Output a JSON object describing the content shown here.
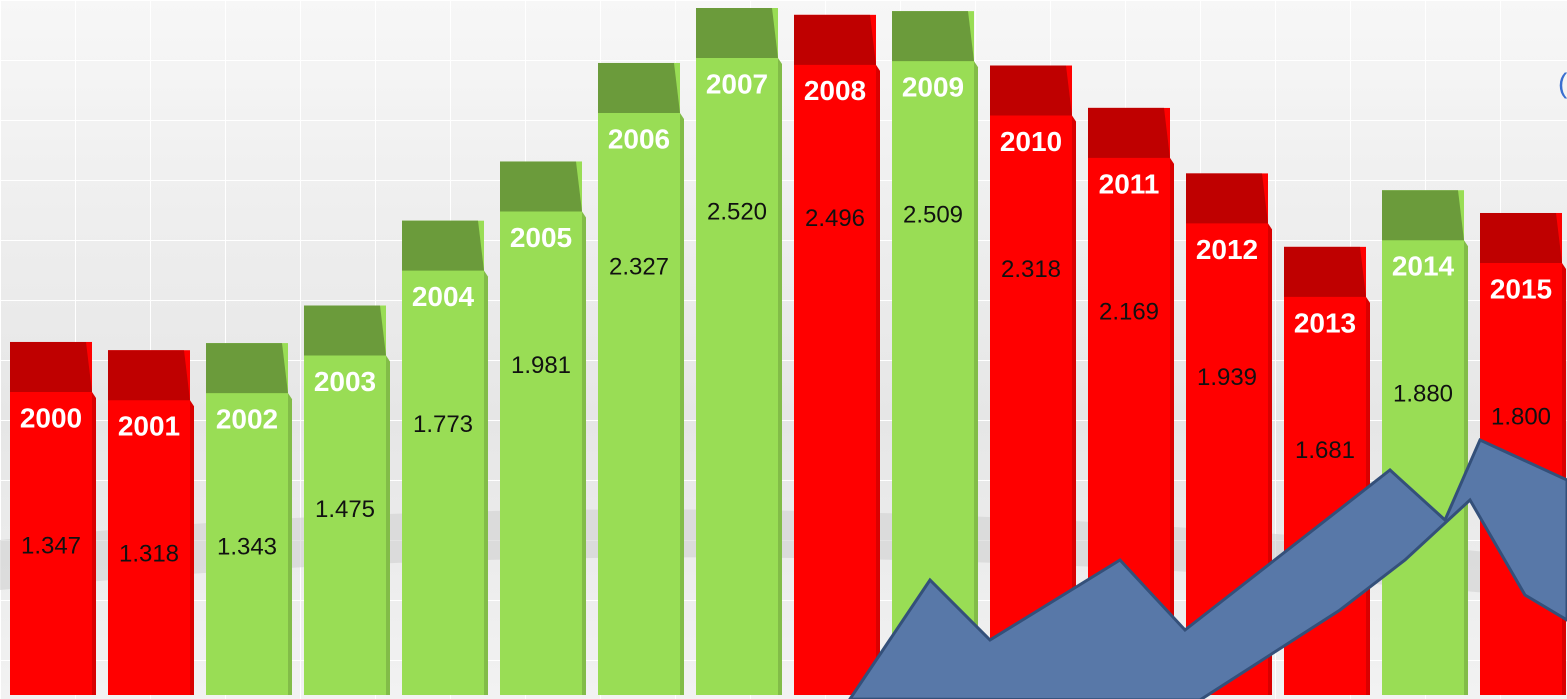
{
  "chart_data": {
    "type": "bar3d",
    "corner_text": "(",
    "categories": [
      "2000",
      "2001",
      "2002",
      "2003",
      "2004",
      "2005",
      "2006",
      "2007",
      "2008",
      "2009",
      "2010",
      "2011",
      "2012",
      "2013",
      "2014",
      "2015"
    ],
    "values": [
      1.347,
      1.318,
      1.343,
      1.475,
      1.773,
      1.981,
      2.327,
      2.52,
      2.496,
      2.509,
      2.318,
      2.169,
      1.939,
      1.681,
      1.88,
      1.8
    ],
    "value_labels": [
      "1.347",
      "1.318",
      "1.343",
      "1.475",
      "1.773",
      "1.981",
      "2.327",
      "2.520",
      "2.496",
      "2.509",
      "2.318",
      "2.169",
      "1.939",
      "1.681",
      "1.880",
      "1.800"
    ],
    "colors": [
      "#ff0000",
      "#ff0000",
      "#99dd55",
      "#99dd55",
      "#99dd55",
      "#99dd55",
      "#99dd55",
      "#99dd55",
      "#ff0000",
      "#99dd55",
      "#ff0000",
      "#ff0000",
      "#ff0000",
      "#ff0000",
      "#99dd55",
      "#ff0000"
    ]
  }
}
